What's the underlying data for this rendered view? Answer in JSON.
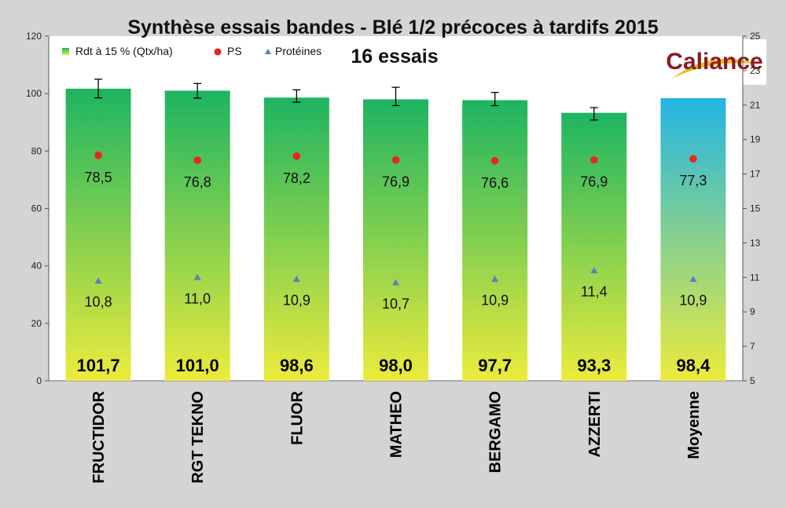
{
  "colors": {
    "bar_top": "#1db462",
    "bar_bottom": "#eceb3c",
    "avg_top": "#23b5e3",
    "avg_bottom": "#eceb3c",
    "ps_marker": "#e8271e",
    "prot_marker": "#5a7fbf",
    "logo_text": "#8a1b22",
    "logo_leaf": "#e8c018"
  },
  "logo": {
    "text": "Caliance"
  },
  "chart_data": {
    "type": "bar",
    "title": "Synthèse essais bandes - Blé 1/2 précoces à tardifs 2015",
    "subtitle": "16 essais",
    "categories": [
      "FRUCTIDOR",
      "RGT TEKNO",
      "FLUOR",
      "MATHEO",
      "BERGAMO",
      "AZZERTI",
      "Moyenne"
    ],
    "series": [
      {
        "name": "Rdt à 15 % (Qtx/ha)",
        "axis": "left",
        "values": [
          101.7,
          101.0,
          98.6,
          98.0,
          97.7,
          93.3,
          98.4
        ],
        "labels": [
          "101,7",
          "101,0",
          "98,6",
          "98,0",
          "97,7",
          "93,3",
          "98,4"
        ],
        "error_low": [
          98.5,
          98.4,
          97.0,
          95.8,
          95.8,
          90.8,
          null
        ],
        "error_high": [
          105.0,
          103.5,
          101.3,
          102.2,
          100.4,
          95.1,
          null
        ]
      },
      {
        "name": "PS",
        "axis": "left",
        "values": [
          78.5,
          76.8,
          78.2,
          76.9,
          76.6,
          76.9,
          77.3
        ],
        "labels": [
          "78,5",
          "76,8",
          "78,2",
          "76,9",
          "76,6",
          "76,9",
          "77,3"
        ]
      },
      {
        "name": "Protéines",
        "axis": "right",
        "values": [
          10.8,
          11.0,
          10.9,
          10.7,
          10.9,
          11.4,
          10.9
        ],
        "labels": [
          "10,8",
          "11,0",
          "10,9",
          "10,7",
          "10,9",
          "11,4",
          "10,9"
        ]
      }
    ],
    "y_left": {
      "min": 0,
      "max": 120,
      "ticks": [
        0,
        20,
        40,
        60,
        80,
        100,
        120
      ]
    },
    "y_right": {
      "min": 5,
      "max": 25,
      "ticks": [
        5,
        7,
        9,
        11,
        13,
        15,
        17,
        19,
        21,
        23,
        25
      ]
    },
    "legend": {
      "position": "top-left"
    },
    "grid": false
  }
}
